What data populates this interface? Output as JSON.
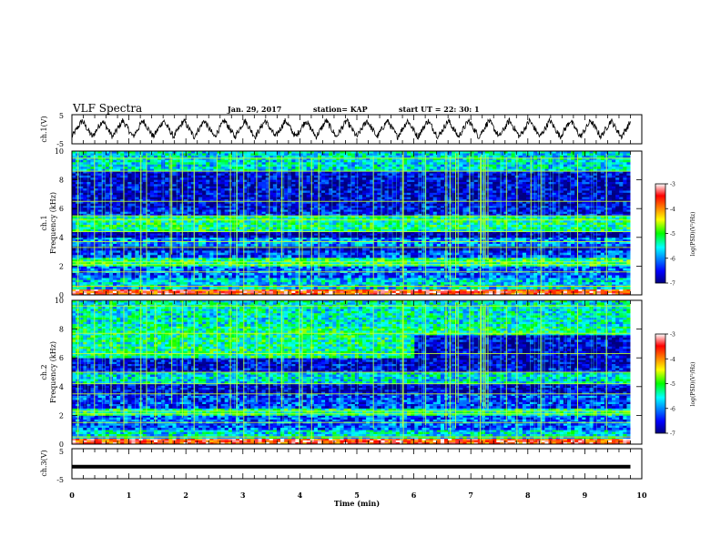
{
  "header": {
    "title": "VLF Spectra",
    "date": "Jan. 29, 2017",
    "station": "station= KAP",
    "start": "start  UT =   22: 30: 1"
  },
  "chart_data": [
    {
      "type": "line",
      "name": "ch1-waveform",
      "ylabel": "ch.1(V)",
      "ylim": [
        -5,
        5
      ],
      "ytick_labels": [
        "5",
        "-5"
      ],
      "xlim": [
        0,
        9.8
      ],
      "envelope": {
        "period_min": 0.357,
        "amplitude_V": 2.8,
        "mean_V": 0.2,
        "noise_V": 1.1
      }
    },
    {
      "type": "heatmap",
      "name": "ch1-spectrogram",
      "ylabel": "ch.1\nFrequency (kHz)",
      "ylim": [
        0,
        10
      ],
      "ytick_labels": [
        "0",
        "2",
        "4",
        "6",
        "8",
        "10"
      ],
      "xlim": [
        0,
        9.8
      ],
      "colorbar": {
        "label": "log(PSD)(V²/Hz)",
        "range": [
          -7,
          -3
        ],
        "tick_labels": [
          "-3",
          "-4",
          "-5",
          "-6",
          "-7"
        ]
      },
      "bands": [
        {
          "from_kHz": 0.0,
          "to_kHz": 0.4,
          "level": -3.6
        },
        {
          "from_kHz": 0.4,
          "to_kHz": 1.2,
          "level": -5.7
        },
        {
          "from_kHz": 1.2,
          "to_kHz": 2.0,
          "level": -6.2
        },
        {
          "from_kHz": 2.0,
          "to_kHz": 2.6,
          "level": -5.2
        },
        {
          "from_kHz": 2.6,
          "to_kHz": 3.1,
          "level": -6.3
        },
        {
          "from_kHz": 3.1,
          "to_kHz": 3.4,
          "level": -6.8
        },
        {
          "from_kHz": 3.4,
          "to_kHz": 4.0,
          "level": -6.0
        },
        {
          "from_kHz": 4.0,
          "to_kHz": 4.4,
          "level": -6.9
        },
        {
          "from_kHz": 4.4,
          "to_kHz": 5.5,
          "level": -5.3
        },
        {
          "from_kHz": 5.5,
          "to_kHz": 6.2,
          "level": -6.5
        },
        {
          "from_kHz": 6.2,
          "to_kHz": 8.6,
          "level": -6.7
        },
        {
          "from_kHz": 8.6,
          "to_kHz": 10.0,
          "level": -5.6
        }
      ],
      "lines_kHz": [
        0.6,
        1.6,
        2.1,
        2.3,
        3.3,
        3.7,
        4.4,
        5.2,
        5.5,
        6.5,
        8.6,
        9.5
      ]
    },
    {
      "type": "heatmap",
      "name": "ch2-spectrogram",
      "ylabel": "ch.2\nFrequency (kHz)",
      "ylim": [
        0,
        10
      ],
      "ytick_labels": [
        "0",
        "2",
        "4",
        "6",
        "8",
        "10"
      ],
      "xlim": [
        0,
        9.8
      ],
      "colorbar": {
        "label": "log(PSD)(V²/Hz)",
        "range": [
          -7,
          -3
        ],
        "tick_labels": [
          "-3",
          "-4",
          "-5",
          "-6",
          "-7"
        ]
      },
      "bands": [
        {
          "from_kHz": 0.0,
          "to_kHz": 0.4,
          "level": -3.6
        },
        {
          "from_kHz": 0.4,
          "to_kHz": 1.0,
          "level": -5.6
        },
        {
          "from_kHz": 1.0,
          "to_kHz": 2.0,
          "level": -6.2
        },
        {
          "from_kHz": 2.0,
          "to_kHz": 2.5,
          "level": -5.3
        },
        {
          "from_kHz": 2.5,
          "to_kHz": 3.5,
          "level": -6.3
        },
        {
          "from_kHz": 3.5,
          "to_kHz": 4.2,
          "level": -6.7
        },
        {
          "from_kHz": 4.2,
          "to_kHz": 5.0,
          "level": -5.6
        },
        {
          "from_kHz": 5.0,
          "to_kHz": 6.0,
          "level": -6.6
        },
        {
          "from_kHz": 6.0,
          "to_kHz": 8.2,
          "level": -5.3
        },
        {
          "from_kHz": 8.2,
          "to_kHz": 10.0,
          "level": -5.5
        }
      ],
      "late_dark": {
        "from_min": 6.0,
        "from_kHz": 5.5,
        "to_kHz": 7.5,
        "level": -6.7
      },
      "lines_kHz": [
        0.5,
        1.5,
        2.1,
        2.3,
        3.5,
        4.2,
        5.0,
        6.3,
        7.7,
        9.6
      ]
    },
    {
      "type": "line",
      "name": "ch3-waveform",
      "ylabel": "ch.3(V)",
      "ylim": [
        -5,
        5
      ],
      "ytick_labels": [
        "5",
        "-5"
      ],
      "xlim": [
        0,
        9.8
      ],
      "constant_V": -1
    }
  ],
  "x_axis": {
    "label": "Time (min)",
    "range": [
      0,
      10
    ],
    "tick_labels": [
      "0",
      "1",
      "2",
      "3",
      "4",
      "5",
      "6",
      "7",
      "8",
      "9",
      "10"
    ]
  }
}
